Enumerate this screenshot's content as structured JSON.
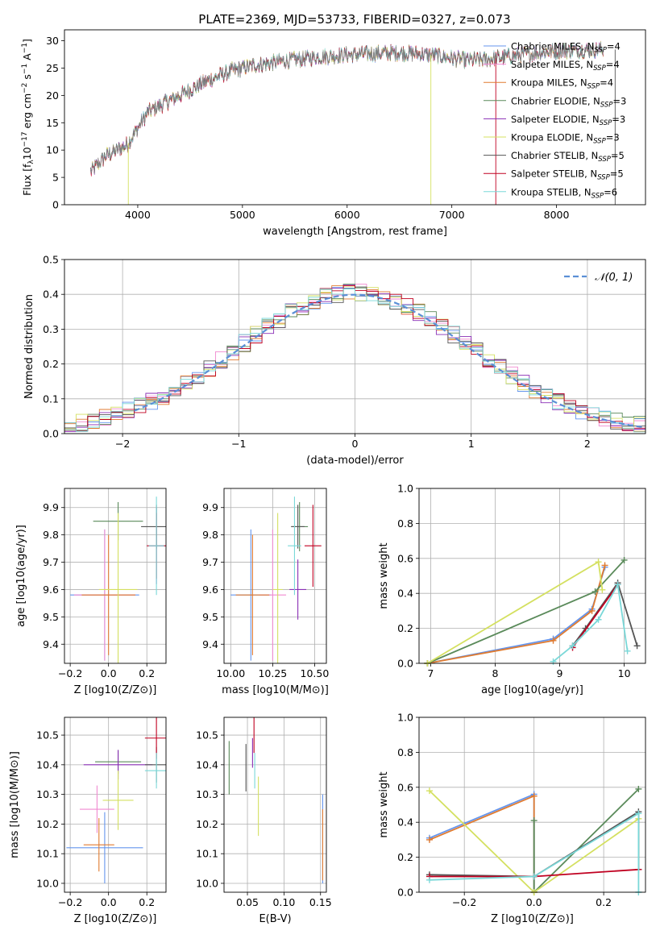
{
  "figure": {
    "title": "PLATE=2369, MJD=53733, FIBERID=0327, z=0.073"
  },
  "colors": {
    "chabrier_miles": "#6495ed",
    "salpeter_miles": "#f08ad0",
    "kroupa_miles": "#e07b30",
    "chabrier_elodie": "#5a8a5a",
    "salpeter_elodie": "#8a2fb5",
    "kroupa_elodie": "#d4e060",
    "chabrier_stelib": "#555555",
    "salpeter_stelib": "#c00020",
    "kroupa_stelib": "#7ad8d8",
    "normal_curve": "#5b8fd6"
  },
  "chart_data": [
    {
      "id": "spectrum",
      "type": "line",
      "title": "PLATE=2369, MJD=53733, FIBERID=0327, z=0.073",
      "xlabel": "wavelength [Angstrom, rest frame]",
      "ylabel": "Flux [f_λ 10^-17 erg cm^-2 s^-1 A^-1]",
      "xlim": [
        3300,
        8850
      ],
      "ylim": [
        0,
        32
      ],
      "xticks": [
        4000,
        5000,
        6000,
        7000,
        8000
      ],
      "yticks": [
        0,
        5,
        10,
        15,
        20,
        25,
        30
      ],
      "grid": false,
      "legend_position": "right",
      "continuum": {
        "x": [
          3550,
          3600,
          3700,
          3800,
          3900,
          4000,
          4100,
          4300,
          4500,
          4700,
          4900,
          5100,
          5300,
          5500,
          5700,
          5900,
          6100,
          6300,
          6500,
          6700,
          6900,
          7100,
          7300,
          7500,
          7700,
          7900,
          8100,
          8300,
          8450
        ],
        "y": [
          6,
          7,
          9,
          10,
          11,
          14,
          17,
          19,
          21,
          23,
          24.5,
          25.5,
          26,
          26.5,
          27,
          27.3,
          27.5,
          27.7,
          27.8,
          27.6,
          27.2,
          26.5,
          26.5,
          27,
          27.5,
          28,
          28.2,
          28.3,
          28.4
        ]
      },
      "series": [
        {
          "name": "Chabrier MILES, N_SSP=4",
          "color_key": "chabrier_miles"
        },
        {
          "name": "Salpeter MILES, N_SSP=4",
          "color_key": "salpeter_miles"
        },
        {
          "name": "Kroupa MILES, N_SSP=4",
          "color_key": "kroupa_miles"
        },
        {
          "name": "Chabrier ELODIE, N_SSP=3",
          "color_key": "chabrier_elodie"
        },
        {
          "name": "Salpeter ELODIE, N_SSP=3",
          "color_key": "salpeter_elodie"
        },
        {
          "name": "Kroupa ELODIE, N_SSP=3",
          "color_key": "kroupa_elodie"
        },
        {
          "name": "Chabrier STELIB, N_SSP=5",
          "color_key": "chabrier_stelib"
        },
        {
          "name": "Salpeter STELIB, N_SSP=5",
          "color_key": "salpeter_stelib"
        },
        {
          "name": "Kroupa STELIB, N_SSP=6",
          "color_key": "kroupa_stelib"
        }
      ]
    },
    {
      "id": "residuals",
      "type": "line",
      "xlabel": "(data-model)/error",
      "ylabel": "Normed distribution",
      "xlim": [
        -2.5,
        2.5
      ],
      "ylim": [
        0,
        0.5
      ],
      "xticks": [
        -2,
        -1,
        0,
        1,
        2
      ],
      "yticks": [
        0.0,
        0.1,
        0.2,
        0.3,
        0.4,
        0.5
      ],
      "grid": true,
      "legend_position": "top-right",
      "legend": "N(0,1)",
      "bin_width": 0.1,
      "normal": {
        "mean": 0,
        "sigma": 1
      }
    },
    {
      "id": "age_vs_Z",
      "type": "scatter",
      "xlabel": "Z [log10(Z/Z⊙)]",
      "ylabel": "age [log10(age/yr)]",
      "xlim": [
        -0.23,
        0.3
      ],
      "ylim": [
        9.33,
        9.97
      ],
      "xticks": [
        -0.2,
        0.0,
        0.2
      ],
      "yticks": [
        9.4,
        9.5,
        9.6,
        9.7,
        9.8,
        9.9
      ],
      "grid": true,
      "points": [
        {
          "color_key": "chabrier_miles",
          "x": -0.02,
          "xerr": 0.18,
          "y": 9.58,
          "yerr": 0.24
        },
        {
          "color_key": "salpeter_miles",
          "x": -0.02,
          "xerr": 0.16,
          "y": 9.58,
          "yerr": 0.24
        },
        {
          "color_key": "kroupa_miles",
          "x": 0.0,
          "xerr": 0.14,
          "y": 9.58,
          "yerr": 0.22
        },
        {
          "color_key": "chabrier_elodie",
          "x": 0.05,
          "xerr": 0.13,
          "y": 9.85,
          "yerr": 0.07
        },
        {
          "color_key": "salpeter_elodie",
          "x": 0.25,
          "xerr": 0.04,
          "y": 9.76,
          "yerr": 0.14
        },
        {
          "color_key": "kroupa_elodie",
          "x": 0.05,
          "xerr": 0.1,
          "y": 9.6,
          "yerr": 0.28
        },
        {
          "color_key": "chabrier_stelib",
          "x": 0.25,
          "xerr": 0.08,
          "y": 9.83,
          "yerr": 0.08
        },
        {
          "color_key": "salpeter_stelib",
          "x": 0.25,
          "xerr": 0.05,
          "y": 9.76,
          "yerr": 0.12
        },
        {
          "color_key": "kroupa_stelib",
          "x": 0.25,
          "xerr": 0.04,
          "y": 9.76,
          "yerr": 0.18
        }
      ]
    },
    {
      "id": "age_vs_mass",
      "type": "scatter",
      "xlabel": "mass [log10(M/M⊙)]",
      "ylabel": "",
      "xlim": [
        9.96,
        10.57
      ],
      "ylim": [
        9.33,
        9.97
      ],
      "xticks": [
        10.0,
        10.25,
        10.5
      ],
      "yticks": [
        9.4,
        9.5,
        9.6,
        9.7,
        9.8,
        9.9
      ],
      "grid": true,
      "points": [
        {
          "color_key": "chabrier_miles",
          "x": 10.12,
          "xerr": 0.12,
          "y": 9.58,
          "yerr": 0.24
        },
        {
          "color_key": "salpeter_miles",
          "x": 10.25,
          "xerr": 0.08,
          "y": 9.58,
          "yerr": 0.24
        },
        {
          "color_key": "kroupa_miles",
          "x": 10.13,
          "xerr": 0.1,
          "y": 9.58,
          "yerr": 0.22
        },
        {
          "color_key": "chabrier_elodie",
          "x": 10.41,
          "xerr": 0.05,
          "y": 9.83,
          "yerr": 0.09
        },
        {
          "color_key": "salpeter_elodie",
          "x": 10.4,
          "xerr": 0.05,
          "y": 9.6,
          "yerr": 0.11
        },
        {
          "color_key": "kroupa_elodie",
          "x": 10.28,
          "xerr": 0.03,
          "y": 9.6,
          "yerr": 0.28
        },
        {
          "color_key": "chabrier_stelib",
          "x": 10.4,
          "xerr": 0.04,
          "y": 9.83,
          "yerr": 0.08
        },
        {
          "color_key": "salpeter_stelib",
          "x": 10.49,
          "xerr": 0.05,
          "y": 9.76,
          "yerr": 0.15
        },
        {
          "color_key": "kroupa_stelib",
          "x": 10.38,
          "xerr": 0.04,
          "y": 9.76,
          "yerr": 0.18
        }
      ]
    },
    {
      "id": "mass_weight_vs_age",
      "type": "line",
      "xlabel": "age [log10(age/yr)]",
      "ylabel": "mass weight",
      "xlim": [
        6.82,
        10.33
      ],
      "ylim": [
        0,
        1.0
      ],
      "xticks": [
        7,
        8,
        9,
        10
      ],
      "yticks": [
        0.0,
        0.2,
        0.4,
        0.6,
        0.8,
        1.0
      ],
      "grid": true,
      "series": [
        {
          "color_key": "chabrier_miles",
          "x": [
            6.95,
            8.9,
            9.5,
            9.7
          ],
          "y": [
            0.0,
            0.14,
            0.31,
            0.55
          ]
        },
        {
          "color_key": "kroupa_miles",
          "x": [
            6.95,
            8.9,
            9.5,
            9.7
          ],
          "y": [
            0.0,
            0.13,
            0.3,
            0.56
          ]
        },
        {
          "color_key": "chabrier_elodie",
          "x": [
            6.95,
            9.55,
            10.0
          ],
          "y": [
            0.0,
            0.41,
            0.59
          ]
        },
        {
          "color_key": "kroupa_elodie",
          "x": [
            6.95,
            9.6,
            9.66
          ],
          "y": [
            0.0,
            0.58,
            0.42
          ]
        },
        {
          "color_key": "chabrier_stelib",
          "x": [
            9.2,
            9.4,
            9.9,
            10.2
          ],
          "y": [
            0.1,
            0.2,
            0.46,
            0.1
          ]
        },
        {
          "color_key": "salpeter_stelib",
          "x": [
            9.2,
            9.9
          ],
          "y": [
            0.09,
            0.45
          ]
        },
        {
          "color_key": "kroupa_stelib",
          "x": [
            8.9,
            9.2,
            9.6,
            9.9,
            10.05
          ],
          "y": [
            0.01,
            0.1,
            0.25,
            0.45,
            0.07
          ]
        }
      ]
    },
    {
      "id": "mass_vs_Z",
      "type": "scatter",
      "xlabel": "Z [log10(Z/Z⊙)]",
      "ylabel": "mass [log10(M/M⊙)]",
      "xlim": [
        -0.23,
        0.3
      ],
      "ylim": [
        9.97,
        10.56
      ],
      "xticks": [
        -0.2,
        0.0,
        0.2
      ],
      "yticks": [
        10.0,
        10.1,
        10.2,
        10.3,
        10.4,
        10.5
      ],
      "grid": true,
      "points": [
        {
          "color_key": "chabrier_miles",
          "x": -0.02,
          "xerr": 0.2,
          "y": 10.12,
          "yerr": 0.12
        },
        {
          "color_key": "salpeter_miles",
          "x": -0.06,
          "xerr": 0.09,
          "y": 10.25,
          "yerr": 0.08
        },
        {
          "color_key": "kroupa_miles",
          "x": -0.05,
          "xerr": 0.08,
          "y": 10.13,
          "yerr": 0.09
        },
        {
          "color_key": "chabrier_elodie",
          "x": 0.05,
          "xerr": 0.12,
          "y": 10.41,
          "yerr": 0.04
        },
        {
          "color_key": "salpeter_elodie",
          "x": 0.05,
          "xerr": 0.18,
          "y": 10.4,
          "yerr": 0.05
        },
        {
          "color_key": "kroupa_elodie",
          "x": 0.05,
          "xerr": 0.08,
          "y": 10.28,
          "yerr": 0.1
        },
        {
          "color_key": "chabrier_stelib",
          "x": 0.25,
          "xerr": 0.06,
          "y": 10.4,
          "yerr": 0.06
        },
        {
          "color_key": "salpeter_stelib",
          "x": 0.25,
          "xerr": 0.06,
          "y": 10.49,
          "yerr": 0.07
        },
        {
          "color_key": "kroupa_stelib",
          "x": 0.25,
          "xerr": 0.06,
          "y": 10.38,
          "yerr": 0.06
        }
      ]
    },
    {
      "id": "mass_vs_ebv",
      "type": "scatter",
      "xlabel": "E(B-V)",
      "ylabel": "",
      "xlim": [
        0.018,
        0.158
      ],
      "ylim": [
        9.97,
        10.56
      ],
      "xticks": [
        0.05,
        0.1,
        0.15
      ],
      "yticks": [
        10.0,
        10.1,
        10.2,
        10.3,
        10.4,
        10.5
      ],
      "grid": true,
      "points": [
        {
          "color_key": "chabrier_miles",
          "x": 0.153,
          "xerr": 0.0,
          "y": 10.15,
          "yerr": 0.15
        },
        {
          "color_key": "kroupa_miles",
          "x": 0.153,
          "xerr": 0.0,
          "y": 10.13,
          "yerr": 0.12
        },
        {
          "color_key": "chabrier_elodie",
          "x": 0.025,
          "xerr": 0.0,
          "y": 10.39,
          "yerr": 0.09
        },
        {
          "color_key": "salpeter_elodie",
          "x": 0.057,
          "xerr": 0.0,
          "y": 10.44,
          "yerr": 0.05
        },
        {
          "color_key": "kroupa_elodie",
          "x": 0.065,
          "xerr": 0.0,
          "y": 10.26,
          "yerr": 0.1
        },
        {
          "color_key": "chabrier_stelib",
          "x": 0.048,
          "xerr": 0.0,
          "y": 10.39,
          "yerr": 0.08
        },
        {
          "color_key": "salpeter_stelib",
          "x": 0.059,
          "xerr": 0.0,
          "y": 10.5,
          "yerr": 0.06
        },
        {
          "color_key": "kroupa_stelib",
          "x": 0.06,
          "xerr": 0.0,
          "y": 10.38,
          "yerr": 0.06
        }
      ]
    },
    {
      "id": "mass_weight_vs_Z",
      "type": "line",
      "xlabel": "Z [log10(Z/Z⊙)]",
      "ylabel": "mass weight",
      "xlim": [
        -0.33,
        0.32
      ],
      "ylim": [
        0,
        1.0
      ],
      "xticks": [
        -0.2,
        0.0,
        0.2
      ],
      "yticks": [
        0.0,
        0.2,
        0.4,
        0.6,
        0.8,
        1.0
      ],
      "grid": true,
      "series": [
        {
          "color_key": "chabrier_miles",
          "x": [
            -0.3,
            0.0,
            0.0
          ],
          "y": [
            0.31,
            0.56,
            0.0
          ]
        },
        {
          "color_key": "kroupa_miles",
          "x": [
            -0.3,
            0.0,
            0.0
          ],
          "y": [
            0.3,
            0.55,
            0.0
          ]
        },
        {
          "color_key": "chabrier_elodie",
          "x": [
            0.0,
            0.0,
            0.3
          ],
          "y": [
            0.41,
            0.0,
            0.59
          ]
        },
        {
          "color_key": "kroupa_elodie",
          "x": [
            -0.3,
            0.0,
            0.3
          ],
          "y": [
            0.58,
            0.0,
            0.42
          ]
        },
        {
          "color_key": "chabrier_stelib",
          "x": [
            -0.3,
            0.0,
            0.3,
            0.3
          ],
          "y": [
            0.1,
            0.09,
            0.46,
            0.13
          ]
        },
        {
          "color_key": "salpeter_stelib",
          "x": [
            -0.3,
            0.0,
            0.3
          ],
          "y": [
            0.09,
            0.09,
            0.13
          ]
        },
        {
          "color_key": "kroupa_stelib",
          "x": [
            -0.3,
            0.0,
            0.3,
            0.3
          ],
          "y": [
            0.07,
            0.09,
            0.45,
            0.0
          ]
        }
      ]
    }
  ]
}
